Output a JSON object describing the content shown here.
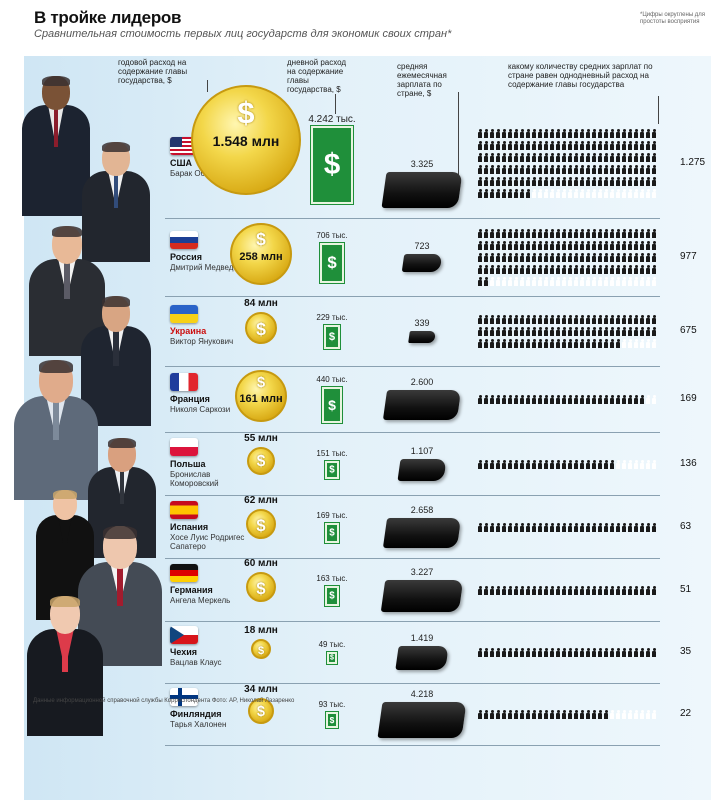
{
  "title": "В тройке лидеров",
  "subtitle": "Сравнительная стоимость первых лиц государств для экономик своих стран*",
  "footnote": "*Цифры округлены для простоты восприятия",
  "headers": {
    "annual": "годовой расход на содержание главы государства, $",
    "daily": "дневной расход на содержание главы государства, $",
    "salary": "средняя ежемесячная зарплата по стране, $",
    "ratio": "какому количеству средних зарплат по стране равен однодневный расход на содержание главы государства"
  },
  "credit": "Данные информационной справочной службы Корреспондента Фото: AP, Николай Лазаренко",
  "chart_data": {
    "type": "table",
    "rows": [
      {
        "country": "США",
        "leader": "Барак Обама",
        "annual": 1.548,
        "annual_label": "1.548 млн",
        "daily": 4242,
        "daily_label": "4.242 тыс.",
        "salary": 3325,
        "salary_label": "3.325",
        "ratio": 1275,
        "ratio_label": "1.275",
        "highlight": false
      },
      {
        "country": "Россия",
        "leader": "Дмитрий Медведев",
        "annual": 258,
        "annual_label": "258 млн",
        "daily": 706,
        "daily_label": "706 тыс.",
        "salary": 723,
        "salary_label": "723",
        "ratio": 977,
        "ratio_label": "977",
        "highlight": false
      },
      {
        "country": "Украина",
        "leader": "Виктор Янукович",
        "annual": 84,
        "annual_label": "84 млн",
        "daily": 229,
        "daily_label": "229 тыс.",
        "salary": 339,
        "salary_label": "339",
        "ratio": 675,
        "ratio_label": "675",
        "highlight": true
      },
      {
        "country": "Франция",
        "leader": "Николя Саркози",
        "annual": 161,
        "annual_label": "161 млн",
        "daily": 440,
        "daily_label": "440 тыс.",
        "salary": 2600,
        "salary_label": "2.600",
        "ratio": 169,
        "ratio_label": "169",
        "highlight": false
      },
      {
        "country": "Польша",
        "leader": "Бронислав Коморовский",
        "annual": 55,
        "annual_label": "55 млн",
        "daily": 151,
        "daily_label": "151 тыс.",
        "salary": 1107,
        "salary_label": "1.107",
        "ratio": 136,
        "ratio_label": "136",
        "highlight": false
      },
      {
        "country": "Испания",
        "leader": "Хосе Луис Родригес Сапатеро",
        "annual": 62,
        "annual_label": "62 млн",
        "daily": 169,
        "daily_label": "169 тыс.",
        "salary": 2658,
        "salary_label": "2.658",
        "ratio": 63,
        "ratio_label": "63",
        "highlight": false
      },
      {
        "country": "Германия",
        "leader": "Ангела Меркель",
        "annual": 60,
        "annual_label": "60 млн",
        "daily": 163,
        "daily_label": "163 тыс.",
        "salary": 3227,
        "salary_label": "3.227",
        "ratio": 51,
        "ratio_label": "51",
        "highlight": false
      },
      {
        "country": "Чехия",
        "leader": "Вацлав Клаус",
        "annual": 18,
        "annual_label": "18 млн",
        "daily": 49,
        "daily_label": "49 тыс.",
        "salary": 1419,
        "salary_label": "1.419",
        "ratio": 35,
        "ratio_label": "35",
        "highlight": false
      },
      {
        "country": "Финляндия",
        "leader": "Тарья Халонен",
        "annual": 34,
        "annual_label": "34 млн",
        "daily": 93,
        "daily_label": "93 тыс.",
        "salary": 4218,
        "salary_label": "4.218",
        "ratio": 22,
        "ratio_label": "22",
        "highlight": false
      }
    ]
  },
  "colors": {
    "coin": "#f3d74a",
    "bill": "#1f8f3a",
    "wallet": "#111111",
    "highlight": "#cc1010",
    "panel": "#dcedf7"
  }
}
